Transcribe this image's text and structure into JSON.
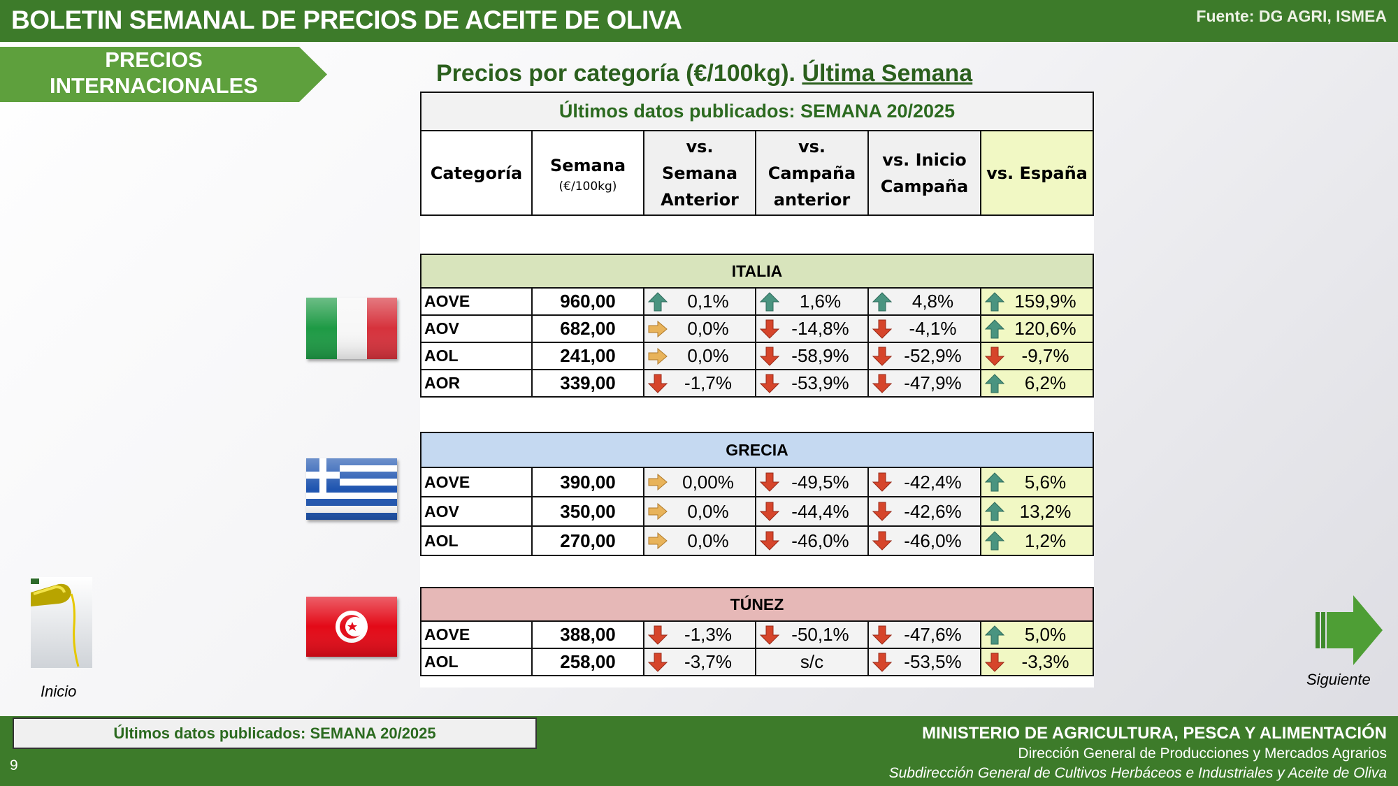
{
  "header": {
    "title": "BOLETIN SEMANAL DE PRECIOS DE ACEITE DE OLIVA",
    "source": "Fuente: DG AGRI, ISMEA"
  },
  "section_tag": {
    "line1": "PRECIOS",
    "line2": "INTERNACIONALES"
  },
  "heading": {
    "text": "Precios por categoría (€/100kg). ",
    "underlined": "Última Semana"
  },
  "table": {
    "published": "Últimos datos publicados: SEMANA 20/2025",
    "columns": {
      "categoria": "Categoría",
      "semana": "Semana",
      "semana_unit": "(€/100kg)",
      "vs_semana": [
        "vs.",
        "Semana",
        "Anterior"
      ],
      "vs_campana": [
        "vs.",
        "Campaña",
        "anterior"
      ],
      "vs_inicio": [
        "vs. Inicio",
        "Campaña"
      ],
      "vs_espana": "vs. España"
    },
    "sections": [
      {
        "name": "ITALIA",
        "rows": [
          {
            "cat": "AOVE",
            "price": "960,00",
            "cells": [
              [
                "up",
                "0,1%"
              ],
              [
                "up",
                "1,6%"
              ],
              [
                "up",
                "4,8%"
              ],
              [
                "up",
                "159,9%"
              ]
            ]
          },
          {
            "cat": "AOV",
            "price": "682,00",
            "cells": [
              [
                "right",
                "0,0%"
              ],
              [
                "down",
                "-14,8%"
              ],
              [
                "down",
                "-4,1%"
              ],
              [
                "up",
                "120,6%"
              ]
            ]
          },
          {
            "cat": "AOL",
            "price": "241,00",
            "cells": [
              [
                "right",
                "0,0%"
              ],
              [
                "down",
                "-58,9%"
              ],
              [
                "down",
                "-52,9%"
              ],
              [
                "down",
                "-9,7%"
              ]
            ]
          },
          {
            "cat": "AOR",
            "price": "339,00",
            "cells": [
              [
                "down",
                "-1,7%"
              ],
              [
                "down",
                "-53,9%"
              ],
              [
                "down",
                "-47,9%"
              ],
              [
                "up",
                "6,2%"
              ]
            ]
          }
        ]
      },
      {
        "name": "GRECIA",
        "rows": [
          {
            "cat": "AOVE",
            "price": "390,00",
            "cells": [
              [
                "right",
                "0,00%"
              ],
              [
                "down",
                "-49,5%"
              ],
              [
                "down",
                "-42,4%"
              ],
              [
                "up",
                "5,6%"
              ]
            ]
          },
          {
            "cat": "AOV",
            "price": "350,00",
            "cells": [
              [
                "right",
                "0,0%"
              ],
              [
                "down",
                "-44,4%"
              ],
              [
                "down",
                "-42,6%"
              ],
              [
                "up",
                "13,2%"
              ]
            ]
          },
          {
            "cat": "AOL",
            "price": "270,00",
            "cells": [
              [
                "right",
                "0,0%"
              ],
              [
                "down",
                "-46,0%"
              ],
              [
                "down",
                "-46,0%"
              ],
              [
                "up",
                "1,2%"
              ]
            ]
          }
        ]
      },
      {
        "name": "TÚNEZ",
        "rows": [
          {
            "cat": "AOVE",
            "price": "388,00",
            "cells": [
              [
                "down",
                "-1,3%"
              ],
              [
                "down",
                "-50,1%"
              ],
              [
                "down",
                "-47,6%"
              ],
              [
                "up",
                "5,0%"
              ]
            ]
          },
          {
            "cat": "AOL",
            "price": "258,00",
            "cells": [
              [
                "down",
                "-3,7%"
              ],
              [
                "none",
                "s/c"
              ],
              [
                "down",
                "-53,5%"
              ],
              [
                "down",
                "-3,3%"
              ]
            ]
          }
        ]
      }
    ]
  },
  "colors": {
    "brand_green": "#3d7b2a",
    "tag_green": "#5ea03d",
    "italia_band": "#d8e4bc",
    "grecia_band": "#c5d9f1",
    "tunez_band": "#e6b8b7",
    "espana_col": "#f1f8c4",
    "arrow_up": "#4a9480",
    "arrow_down": "#d6452b",
    "arrow_right": "#e8b35a"
  },
  "nav": {
    "inicio": "Inicio",
    "siguiente": "Siguiente"
  },
  "footer": {
    "published": "Últimos datos publicados: SEMANA 20/2025",
    "page_number": "9",
    "ministry": "MINISTERIO DE AGRICULTURA, PESCA Y ALIMENTACIÓN",
    "direccion": "Dirección General de Producciones y Mercados Agrarios",
    "subdireccion": "Subdirección General de Cultivos Herbáceos e Industriales y Aceite de Oliva"
  }
}
